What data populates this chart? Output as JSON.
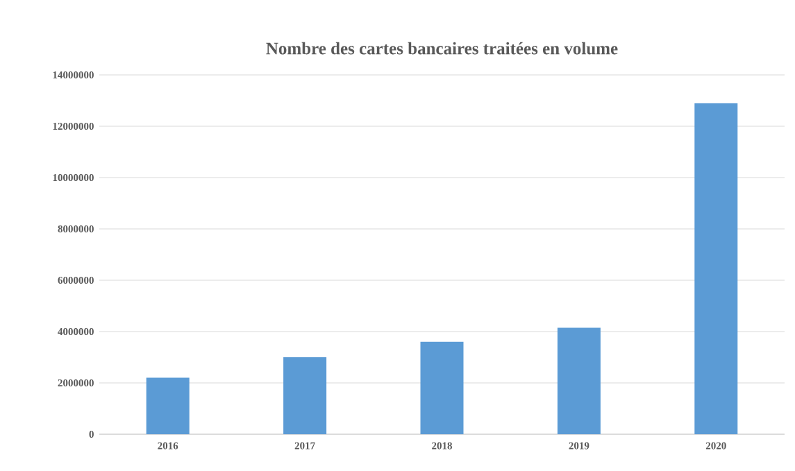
{
  "chart_data": {
    "type": "bar",
    "title": "Nombre des cartes bancaires traitées en volume",
    "categories": [
      "2016",
      "2017",
      "2018",
      "2019",
      "2020"
    ],
    "values": [
      2200000,
      3000000,
      3600000,
      4150000,
      12900000
    ],
    "color": "#5b9bd5",
    "ylim": [
      0,
      14000000
    ],
    "yticks": [
      0,
      2000000,
      4000000,
      6000000,
      8000000,
      10000000,
      12000000,
      14000000
    ],
    "grid": "y"
  }
}
